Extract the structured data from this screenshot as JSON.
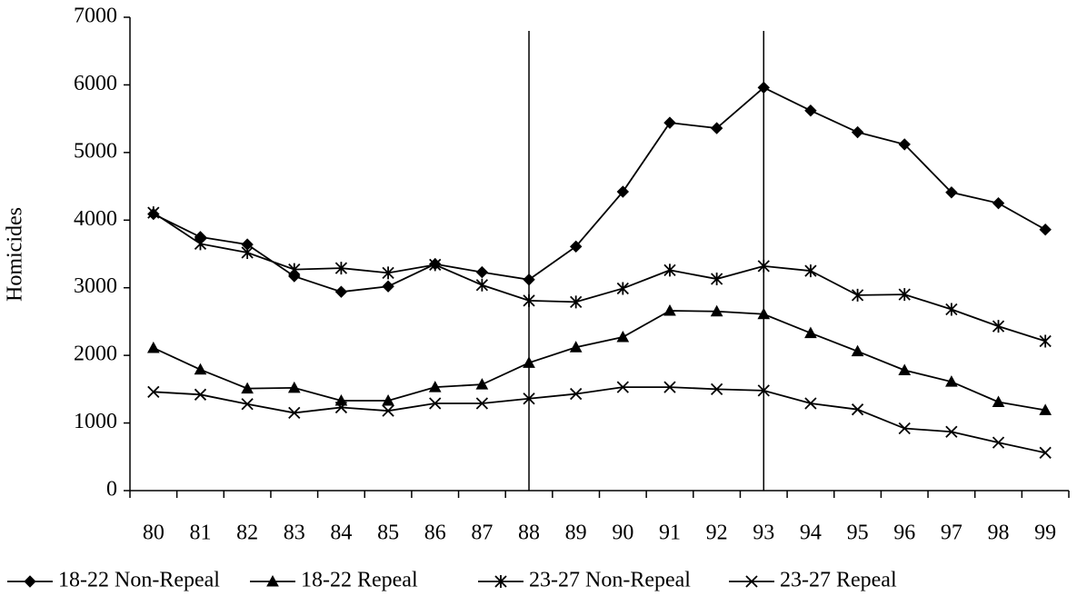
{
  "chart_data": {
    "type": "line",
    "y_label": "Homicides",
    "categories": [
      "80",
      "81",
      "82",
      "83",
      "84",
      "85",
      "86",
      "87",
      "88",
      "89",
      "90",
      "91",
      "92",
      "93",
      "94",
      "95",
      "96",
      "97",
      "98",
      "99"
    ],
    "reference_lines": [
      "88",
      "93"
    ],
    "ylim": [
      0,
      7000
    ],
    "yticks": [
      0,
      1000,
      2000,
      3000,
      4000,
      5000,
      6000,
      7000
    ],
    "legend": "bottom",
    "series": [
      {
        "name": "18-22 Non-Repeal",
        "color": "#000000",
        "marker": "diamond",
        "values": [
          4090,
          3750,
          3640,
          3170,
          2940,
          3020,
          3350,
          3230,
          3120,
          3610,
          4420,
          5440,
          5360,
          5960,
          5620,
          5300,
          5120,
          4410,
          4250,
          3860
        ]
      },
      {
        "name": "18-22 Repeal",
        "color": "#000000",
        "marker": "triangle",
        "values": [
          2110,
          1790,
          1510,
          1520,
          1330,
          1330,
          1530,
          1570,
          1890,
          2120,
          2270,
          2660,
          2650,
          2610,
          2330,
          2060,
          1780,
          1610,
          1310,
          1190
        ]
      },
      {
        "name": "23-27 Non-Repeal",
        "color": "#000000",
        "marker": "asterisk",
        "values": [
          4110,
          3650,
          3520,
          3270,
          3290,
          3220,
          3340,
          3040,
          2810,
          2790,
          2990,
          3260,
          3130,
          3320,
          3250,
          2890,
          2900,
          2680,
          2430,
          2210
        ]
      },
      {
        "name": "23-27 Repeal",
        "color": "#000000",
        "marker": "x",
        "values": [
          1460,
          1420,
          1280,
          1150,
          1230,
          1180,
          1290,
          1290,
          1360,
          1430,
          1530,
          1530,
          1500,
          1480,
          1290,
          1200,
          920,
          870,
          710,
          560
        ]
      }
    ]
  }
}
